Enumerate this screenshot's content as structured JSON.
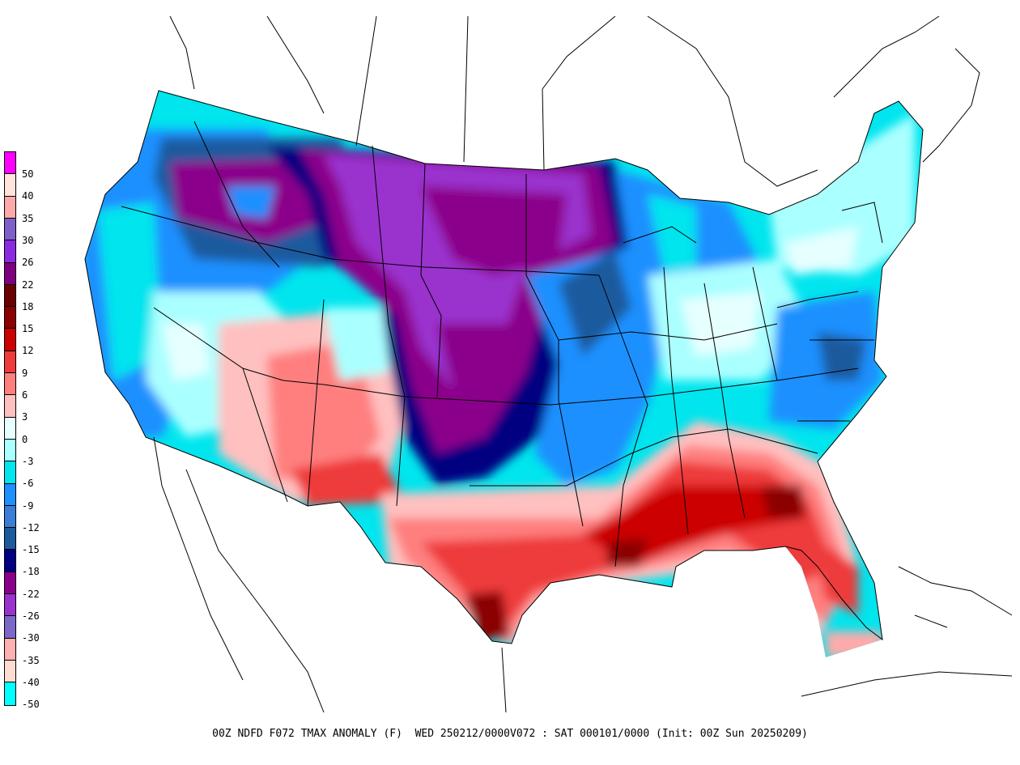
{
  "caption": "00Z NDFD F072 TMAX ANOMALY (F)  WED 250212/0000V072 : SAT 000101/0000 (Init: 00Z Sun 20250209)",
  "legend": {
    "labels": [
      "50",
      "40",
      "35",
      "30",
      "26",
      "22",
      "18",
      "15",
      "12",
      "9",
      "6",
      "3",
      "0",
      "-3",
      "-6",
      "-9",
      "-12",
      "-15",
      "-18",
      "-22",
      "-26",
      "-30",
      "-35",
      "-40",
      "-50"
    ],
    "colors": [
      "#ff00ff",
      "#ffe4dc",
      "#ffaaaa",
      "#7f5fc8",
      "#8a2be2",
      "#7f007f",
      "#6a0000",
      "#8b0000",
      "#cc0000",
      "#ee3b3b",
      "#ff7f7f",
      "#ffc0c0",
      "#e6ffff",
      "#aaffff",
      "#00e5ee",
      "#1e90ff",
      "#3a7fd5",
      "#1c5a9e",
      "#000080",
      "#8b008b",
      "#9a32cd",
      "#7b68c8",
      "#ffb0b0",
      "#ffdcd2",
      "#00ffff"
    ]
  },
  "map": {
    "field": "TMAX ANOMALY (F)",
    "region": "CONUS",
    "colors": {
      "ocean": "#ffffff",
      "border": "#000000",
      "deep_purple": "#8b008b",
      "purple": "#9a32cd",
      "navy": "#000080",
      "dark_blue": "#1c5a9e",
      "blue": "#1e90ff",
      "cyan": "#00e5ee",
      "light_cyan": "#aaffff",
      "pale": "#e6ffff",
      "pink": "#ffc0c0",
      "salmon": "#ff7f7f",
      "red": "#ee3b3b",
      "dark_red": "#cc0000",
      "maroon": "#8b0000"
    }
  }
}
